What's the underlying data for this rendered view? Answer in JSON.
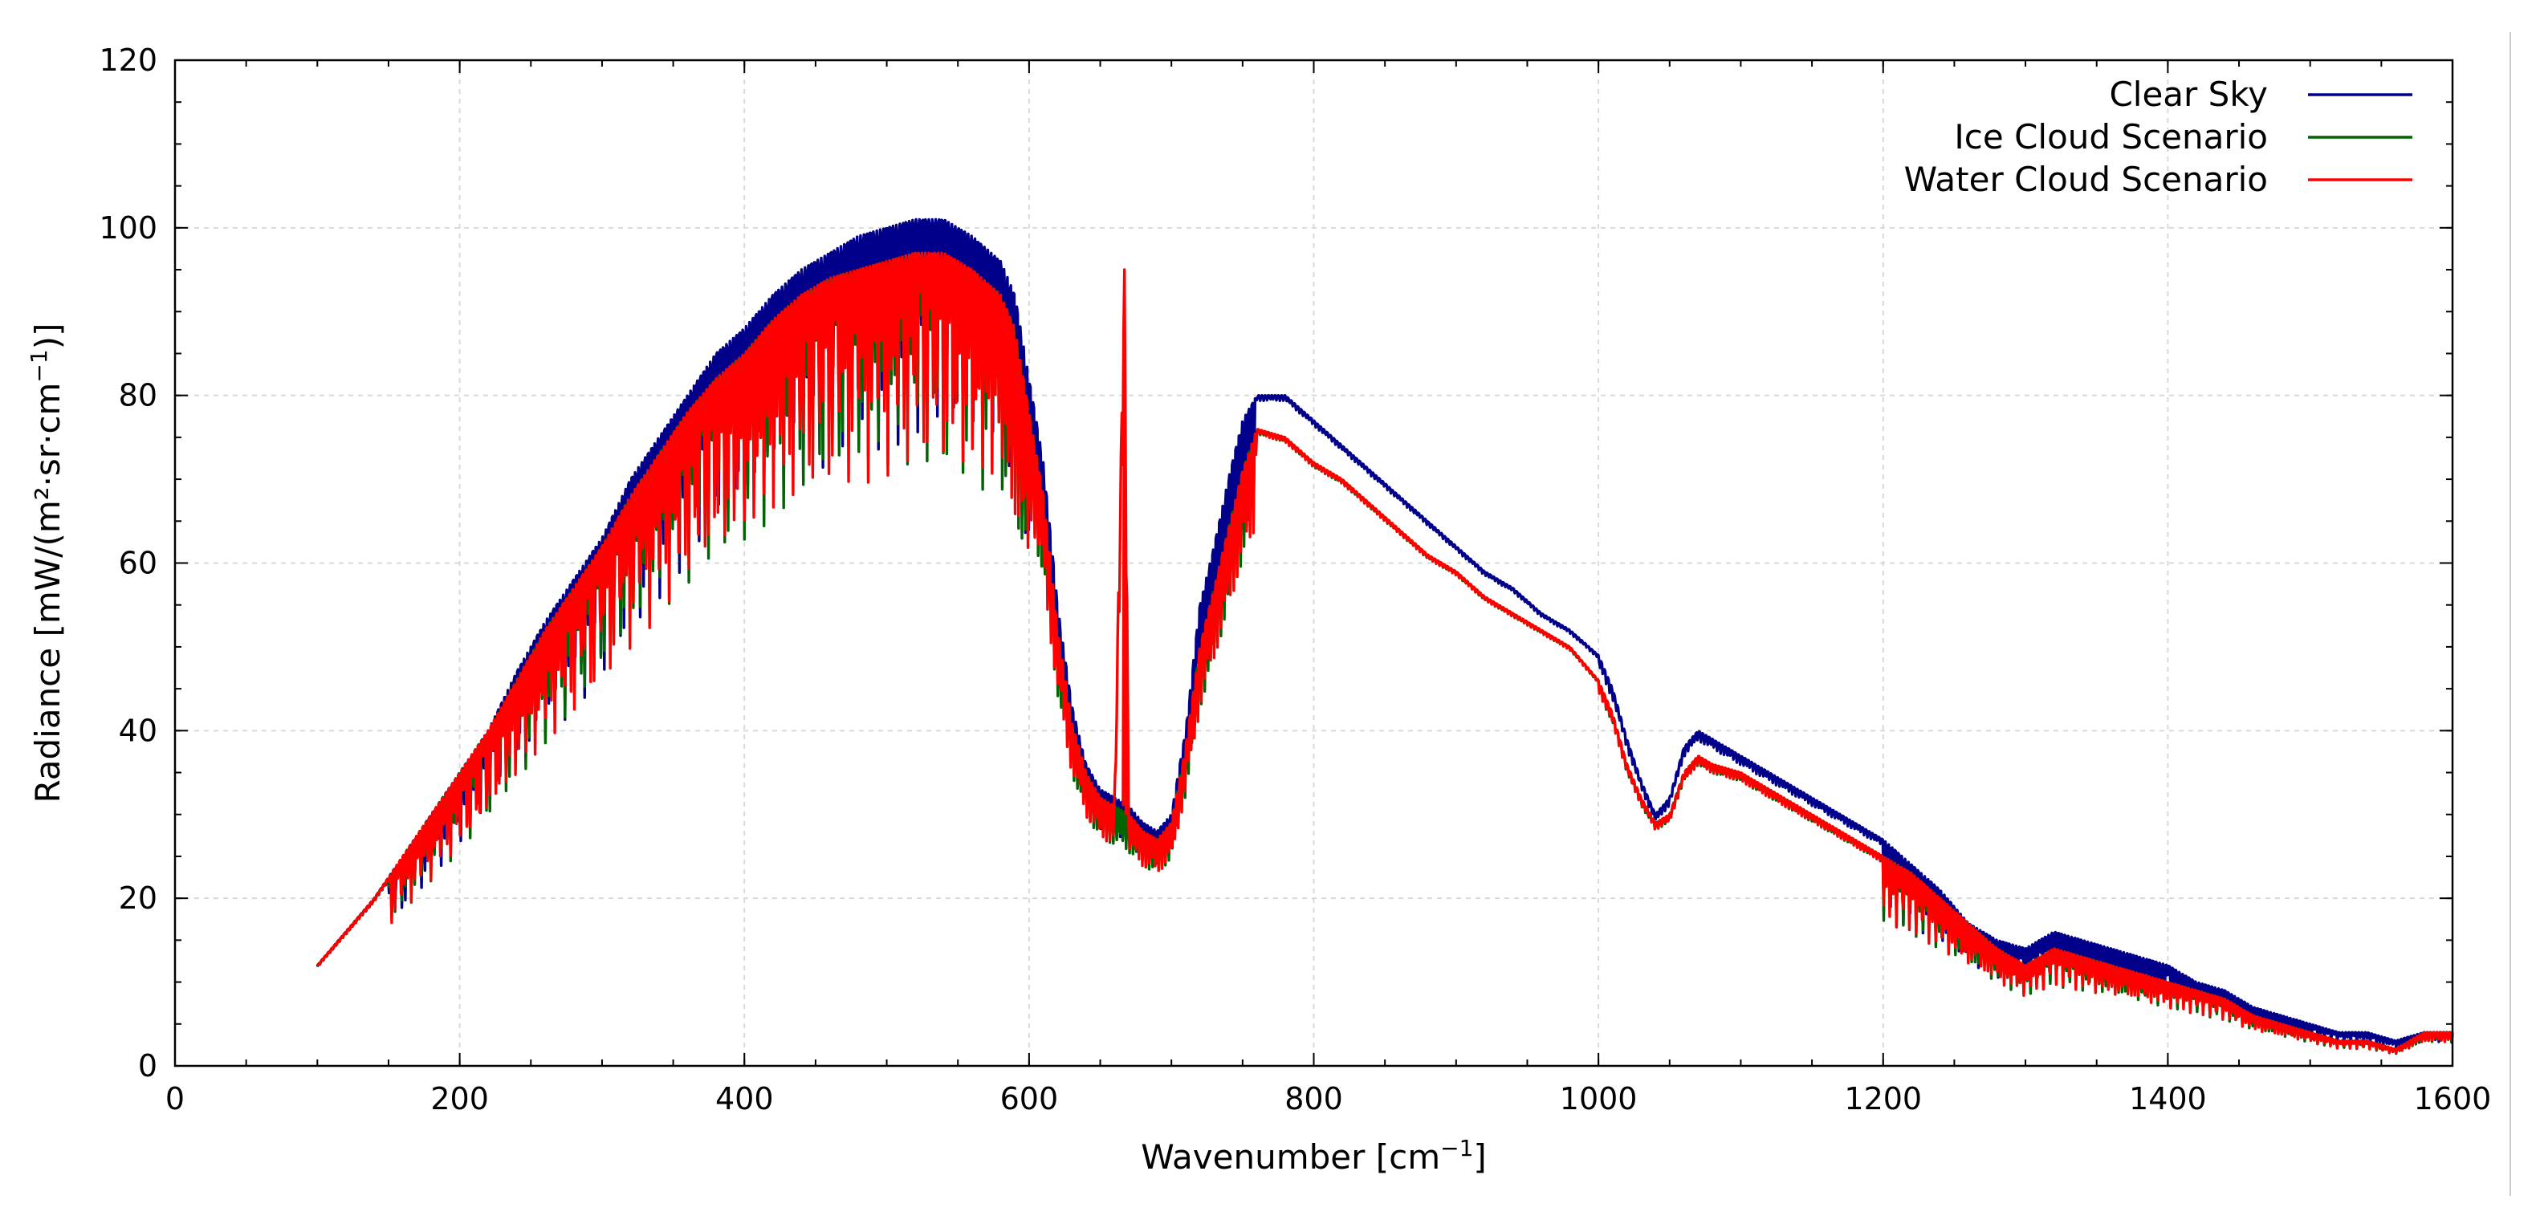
{
  "chart_data": {
    "type": "line",
    "title": "",
    "xlabel": "Wavenumber [cm",
    "xlabel_superscript": "−1",
    "xlabel_suffix": "]",
    "ylabel": "Radiance [mW/(m²·sr·cm",
    "ylabel_superscript": "−1",
    "ylabel_suffix": ")]",
    "xlim": [
      0,
      1600
    ],
    "ylim": [
      0,
      120
    ],
    "x_ticks": [
      0,
      200,
      400,
      600,
      800,
      1000,
      1200,
      1400,
      1600
    ],
    "y_ticks": [
      0,
      20,
      40,
      60,
      80,
      100,
      120
    ],
    "x_minor_step": 50,
    "y_minor_step": 5,
    "grid": true,
    "legend_position": "top-right",
    "series": [
      {
        "name": "Clear Sky",
        "color": "#00008b",
        "x": [
          100,
          120,
          140,
          160,
          180,
          200,
          220,
          240,
          260,
          280,
          300,
          320,
          340,
          360,
          380,
          400,
          420,
          440,
          460,
          480,
          500,
          520,
          540,
          560,
          580,
          590,
          600,
          610,
          620,
          630,
          640,
          650,
          660,
          670,
          680,
          690,
          700,
          710,
          720,
          730,
          740,
          750,
          760,
          780,
          800,
          820,
          840,
          860,
          880,
          900,
          920,
          940,
          960,
          980,
          1000,
          1010,
          1020,
          1030,
          1040,
          1050,
          1060,
          1070,
          1080,
          1100,
          1120,
          1140,
          1160,
          1180,
          1200,
          1220,
          1240,
          1260,
          1280,
          1300,
          1320,
          1340,
          1360,
          1380,
          1400,
          1420,
          1440,
          1460,
          1480,
          1500,
          1520,
          1540,
          1560,
          1580,
          1600
        ],
        "values": [
          12,
          16,
          20,
          25,
          30,
          35,
          40,
          47,
          53,
          58,
          63,
          70,
          75,
          80,
          85,
          88,
          92,
          95,
          97,
          99,
          100,
          101,
          101,
          99,
          96,
          92,
          82,
          72,
          55,
          43,
          36,
          33,
          32,
          31,
          29,
          28,
          30,
          40,
          55,
          62,
          70,
          77,
          80,
          80,
          77,
          74,
          71,
          68,
          65,
          62,
          59,
          57,
          54,
          52,
          49,
          45,
          39,
          34,
          30,
          32,
          38,
          40,
          39,
          37,
          35,
          33,
          31,
          29,
          27,
          24,
          21,
          17,
          15,
          14,
          16,
          15,
          14,
          13,
          12,
          10,
          9,
          7,
          6,
          5,
          4,
          4,
          3,
          4,
          4
        ]
      },
      {
        "name": "Ice Cloud Scenario",
        "color": "#006400",
        "x": [
          100,
          120,
          140,
          160,
          180,
          200,
          220,
          240,
          260,
          280,
          300,
          320,
          340,
          360,
          380,
          400,
          420,
          440,
          460,
          480,
          500,
          520,
          540,
          560,
          580,
          590,
          600,
          610,
          620,
          630,
          640,
          650,
          660,
          670,
          680,
          690,
          700,
          710,
          720,
          730,
          740,
          750,
          760,
          780,
          800,
          820,
          840,
          860,
          880,
          900,
          920,
          940,
          960,
          980,
          1000,
          1010,
          1020,
          1030,
          1040,
          1050,
          1060,
          1070,
          1080,
          1100,
          1120,
          1140,
          1160,
          1180,
          1200,
          1220,
          1240,
          1260,
          1280,
          1300,
          1320,
          1340,
          1360,
          1380,
          1400,
          1420,
          1440,
          1460,
          1480,
          1500,
          1520,
          1540,
          1560,
          1580,
          1600
        ],
        "values": [
          12,
          16,
          20,
          25,
          30,
          35,
          40,
          46,
          52,
          57,
          62,
          68,
          73,
          78,
          82,
          85,
          89,
          92,
          94,
          95,
          96,
          97,
          96,
          95,
          92,
          88,
          78,
          68,
          52,
          41,
          35,
          32,
          31,
          30,
          28,
          27,
          29,
          38,
          50,
          57,
          64,
          71,
          76,
          75,
          72,
          70,
          67,
          64,
          61,
          59,
          56,
          54,
          52,
          50,
          46,
          42,
          36,
          32,
          29,
          30,
          35,
          37,
          36,
          35,
          33,
          31,
          29,
          27,
          25,
          23,
          20,
          17,
          14,
          12,
          14,
          13,
          12,
          11,
          10,
          9,
          8,
          6,
          5,
          4,
          3,
          3,
          2,
          4,
          4
        ]
      },
      {
        "name": "Water Cloud Scenario",
        "color": "#ff0000",
        "x": [
          100,
          120,
          140,
          160,
          180,
          200,
          220,
          240,
          260,
          280,
          300,
          320,
          340,
          360,
          380,
          400,
          420,
          440,
          460,
          480,
          500,
          520,
          540,
          560,
          580,
          590,
          600,
          610,
          620,
          630,
          640,
          650,
          660,
          667,
          670,
          680,
          690,
          700,
          710,
          720,
          730,
          740,
          750,
          760,
          780,
          800,
          820,
          840,
          860,
          880,
          900,
          920,
          940,
          960,
          980,
          1000,
          1010,
          1020,
          1030,
          1040,
          1050,
          1060,
          1070,
          1080,
          1100,
          1120,
          1140,
          1160,
          1180,
          1200,
          1220,
          1240,
          1260,
          1280,
          1300,
          1320,
          1340,
          1360,
          1380,
          1400,
          1420,
          1440,
          1460,
          1480,
          1500,
          1520,
          1540,
          1560,
          1580,
          1600
        ],
        "values": [
          12,
          16,
          20,
          25,
          30,
          35,
          40,
          46,
          52,
          57,
          62,
          68,
          73,
          78,
          82,
          85,
          89,
          92,
          94,
          95,
          96,
          97,
          97,
          95,
          92,
          88,
          78,
          68,
          52,
          41,
          35,
          32,
          31,
          95,
          30,
          28,
          27,
          29,
          38,
          50,
          57,
          64,
          71,
          76,
          75,
          72,
          70,
          67,
          64,
          61,
          59,
          56,
          54,
          52,
          50,
          46,
          42,
          36,
          32,
          29,
          30,
          35,
          37,
          36,
          35,
          33,
          31,
          29,
          27,
          25,
          23,
          20,
          17,
          14,
          12,
          14,
          13,
          12,
          11,
          10,
          9,
          8,
          6,
          5,
          4,
          3,
          3,
          2,
          4,
          4
        ]
      }
    ]
  }
}
